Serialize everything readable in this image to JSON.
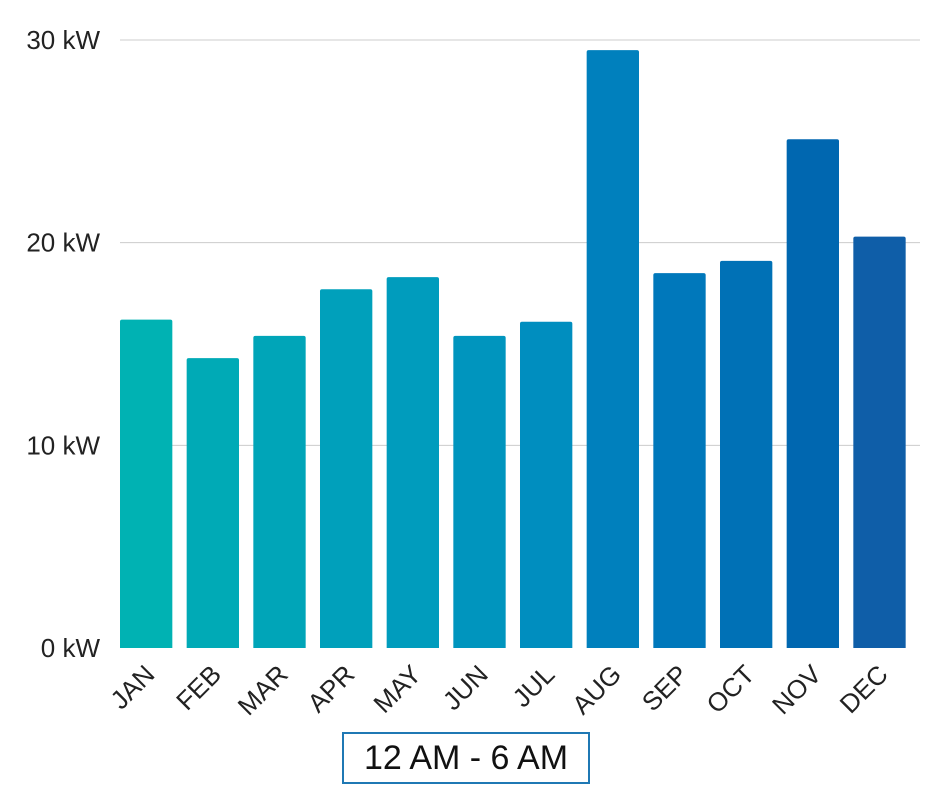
{
  "chart_data": {
    "type": "bar",
    "title": "",
    "xlabel": "",
    "ylabel": "",
    "ylim": [
      0,
      30
    ],
    "yticks": [
      {
        "value": 0,
        "label": "0 kW"
      },
      {
        "value": 10,
        "label": "10 kW"
      },
      {
        "value": 20,
        "label": "20 kW"
      },
      {
        "value": 30,
        "label": "30 kW"
      }
    ],
    "categories": [
      "JAN",
      "FEB",
      "MAR",
      "APR",
      "MAY",
      "JUN",
      "JUL",
      "AUG",
      "SEP",
      "OCT",
      "NOV",
      "DEC"
    ],
    "series": [
      {
        "name": "12 AM - 6 AM",
        "values": [
          16.2,
          14.3,
          15.4,
          17.7,
          18.3,
          15.4,
          16.1,
          29.5,
          18.5,
          19.1,
          25.1,
          20.3
        ]
      }
    ],
    "bar_colors": [
      "#00b2b3",
      "#00aab6",
      "#00a5b8",
      "#00a0bb",
      "#009cbd",
      "#0095be",
      "#008ebf",
      "#0080bd",
      "#0078bb",
      "#0071b6",
      "#0067b0",
      "#0f5ea8"
    ],
    "grid": true,
    "gridline_color": "#cccccc",
    "legend": {
      "position": "bottom-center",
      "label": "12 AM - 6 AM",
      "border_color": "#1f78b4"
    }
  }
}
